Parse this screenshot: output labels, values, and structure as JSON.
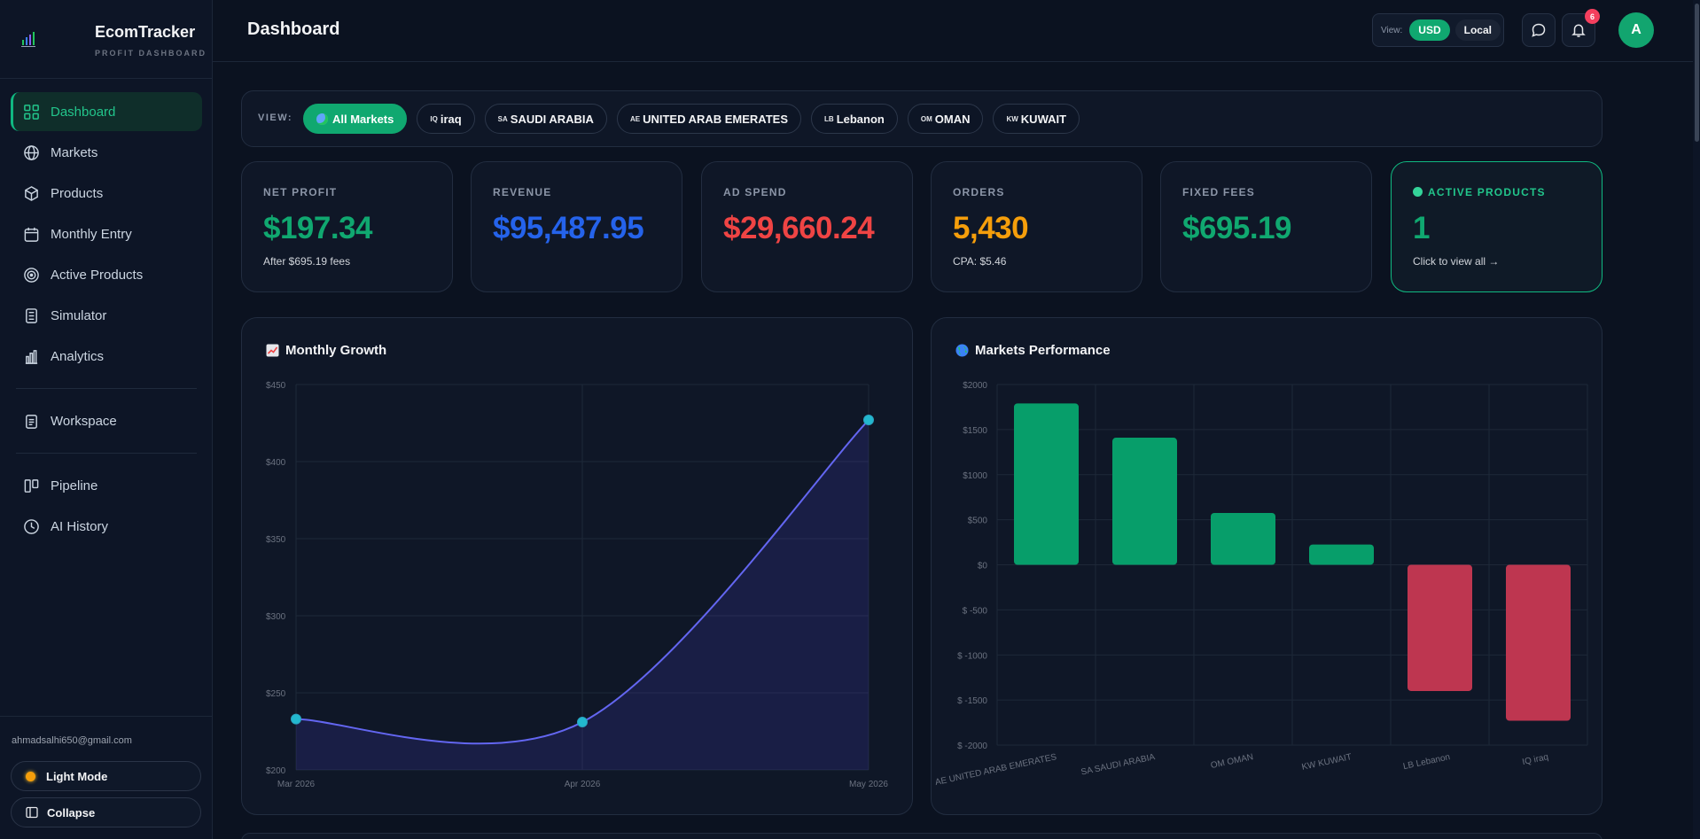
{
  "brand": {
    "title": "EcomTracker",
    "subtitle": "PROFIT DASHBOARD"
  },
  "sidebar": {
    "items": [
      {
        "label": "Dashboard",
        "icon": "grid-icon",
        "active": true
      },
      {
        "label": "Markets",
        "icon": "globe-icon"
      },
      {
        "label": "Products",
        "icon": "box-icon"
      },
      {
        "label": "Monthly Entry",
        "icon": "calendar-icon"
      },
      {
        "label": "Active Products",
        "icon": "target-icon"
      },
      {
        "label": "Simulator",
        "icon": "calculator-icon"
      },
      {
        "label": "Analytics",
        "icon": "bar-chart-icon"
      },
      {
        "label": "Workspace",
        "icon": "clipboard-icon"
      },
      {
        "label": "Pipeline",
        "icon": "kanban-icon"
      },
      {
        "label": "AI History",
        "icon": "clock-icon"
      }
    ],
    "user_email": "ahmadsalhi650@gmail.com",
    "light_mode_label": "Light Mode",
    "collapse_label": "Collapse"
  },
  "header": {
    "title": "Dashboard",
    "view_label": "View:",
    "currency_options": [
      "USD",
      "Local"
    ],
    "selected_currency": "USD",
    "notification_count": "6",
    "avatar_initial": "A"
  },
  "markets": {
    "view_label": "VIEW:",
    "options": [
      {
        "code": "",
        "label": "All Markets",
        "active": true
      },
      {
        "code": "IQ",
        "label": "iraq"
      },
      {
        "code": "SA",
        "label": "SAUDI ARABIA"
      },
      {
        "code": "AE",
        "label": "UNITED ARAB EMERATES"
      },
      {
        "code": "LB",
        "label": "Lebanon"
      },
      {
        "code": "OM",
        "label": "OMAN"
      },
      {
        "code": "KW",
        "label": "KUWAIT"
      }
    ]
  },
  "kpis": [
    {
      "label": "NET PROFIT",
      "value": "$197.34",
      "sub": "After $695.19 fees",
      "color": "#10a870"
    },
    {
      "label": "REVENUE",
      "value": "$95,487.95",
      "sub": "",
      "color": "#2563eb"
    },
    {
      "label": "AD SPEND",
      "value": "$29,660.24",
      "sub": "",
      "color": "#ef4444"
    },
    {
      "label": "ORDERS",
      "value": "5,430",
      "sub": "CPA: $5.46",
      "color": "#f59e0b"
    },
    {
      "label": "FIXED FEES",
      "value": "$695.19",
      "sub": "",
      "color": "#10a870"
    },
    {
      "label": "ACTIVE PRODUCTS",
      "value": "1",
      "sub": "Click to view all →",
      "color": "#10a870"
    }
  ],
  "chart_data": [
    {
      "type": "area",
      "title": "Monthly Growth",
      "x": [
        "Mar 2026",
        "Apr 2026",
        "May 2026"
      ],
      "values": [
        233,
        231,
        427
      ],
      "ylim": [
        200,
        450
      ],
      "yticks": [
        "$200",
        "$250",
        "$300",
        "$350",
        "$400",
        "$450"
      ],
      "line_color": "#6366f1",
      "point_color": "#22b8cf",
      "grid": true
    },
    {
      "type": "bar",
      "title": "Markets Performance",
      "categories": [
        "AE UNITED ARAB EMERATES",
        "SA SAUDI ARABIA",
        "OM OMAN",
        "KW KUWAIT",
        "LB Lebanon",
        "IQ iraq"
      ],
      "values": [
        1790,
        1410,
        575,
        225,
        -1400,
        -1730
      ],
      "ylim": [
        -2000,
        2000
      ],
      "yticks": [
        "$ -2000",
        "$ -1500",
        "$ -1000",
        "$ -500",
        "$0",
        "$500",
        "$1000",
        "$1500",
        "$2000"
      ],
      "positive_color": "#079e6a",
      "negative_color": "#be3650",
      "grid": true
    }
  ]
}
